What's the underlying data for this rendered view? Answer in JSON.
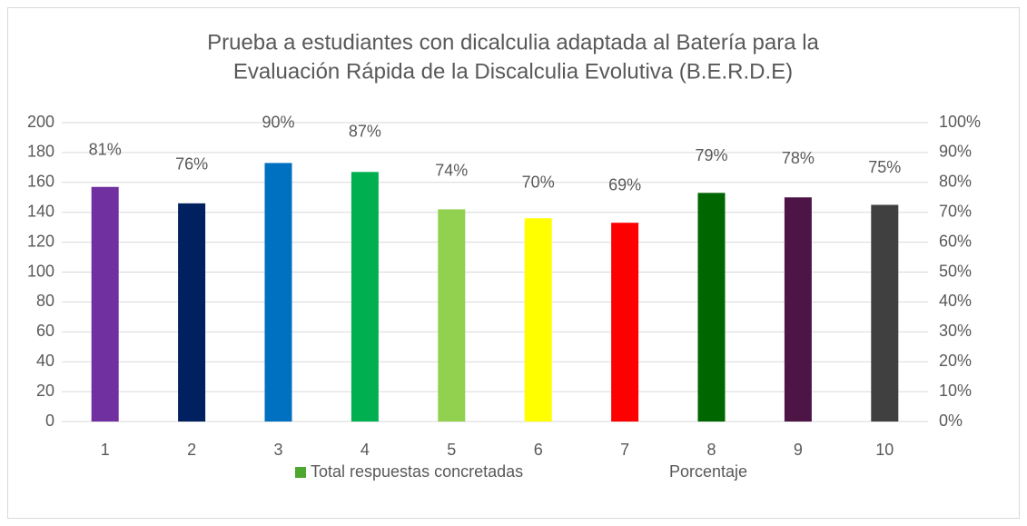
{
  "chart_data": {
    "type": "bar",
    "title": [
      "Prueba a estudiantes con dicalculia adaptada al Batería para la",
      "Evaluación Rápida de la Discalculia Evolutiva (B.E.R.D.E)"
    ],
    "categories": [
      "1",
      "2",
      "3",
      "4",
      "5",
      "6",
      "7",
      "8",
      "9",
      "10"
    ],
    "series": [
      {
        "name": "Total respuestas concretadas",
        "color": "#4ea72e",
        "colors": [
          "#7030a0",
          "#002060",
          "#0070c0",
          "#00b050",
          "#92d050",
          "#ffff00",
          "#ff0000",
          "#006600",
          "#4d1446",
          "#404040"
        ],
        "values": [
          157,
          146,
          173,
          167,
          142,
          136,
          133,
          153,
          150,
          145
        ]
      },
      {
        "name": "Porcentaje",
        "axis": "y2",
        "values": [
          81,
          76,
          90,
          87,
          74,
          70,
          69,
          79,
          78,
          75
        ],
        "value_labels": [
          "81%",
          "76%",
          "90%",
          "87%",
          "74%",
          "70%",
          "69%",
          "79%",
          "78%",
          "75%"
        ]
      }
    ],
    "ylim": [
      0,
      200
    ],
    "yticks": [
      0,
      20,
      40,
      60,
      80,
      100,
      120,
      140,
      160,
      180,
      200
    ],
    "y2lim": [
      0,
      100
    ],
    "y2ticks": [
      {
        "value": 0,
        "label": "0%"
      },
      {
        "value": 10,
        "label": "10%"
      },
      {
        "value": 20,
        "label": "20%"
      },
      {
        "value": 30,
        "label": "30%"
      },
      {
        "value": 40,
        "label": "40%"
      },
      {
        "value": 50,
        "label": "50%"
      },
      {
        "value": 60,
        "label": "60%"
      },
      {
        "value": 70,
        "label": "70%"
      },
      {
        "value": 80,
        "label": "80%"
      },
      {
        "value": 90,
        "label": "90%"
      },
      {
        "value": 100,
        "label": "100%"
      }
    ],
    "grid": true,
    "legend": "bottom"
  }
}
